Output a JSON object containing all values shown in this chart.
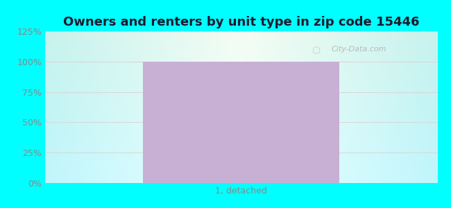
{
  "title": "Owners and renters by unit type in zip code 15446",
  "categories": [
    "1, detached"
  ],
  "values": [
    100
  ],
  "bar_color": "#c8afd4",
  "bar_width": 0.5,
  "ylim": [
    0,
    125
  ],
  "yticks": [
    0,
    25,
    50,
    75,
    100,
    125
  ],
  "ytick_labels": [
    "0%",
    "25%",
    "50%",
    "75%",
    "100%",
    "125%"
  ],
  "title_fontsize": 13,
  "tick_fontsize": 9,
  "bg_cyan": "#00ffff",
  "watermark_text": "City-Data.com",
  "watermark_color": "#b0b0b0",
  "grid_color": "#d8d8d8",
  "tick_label_color": "#888888"
}
